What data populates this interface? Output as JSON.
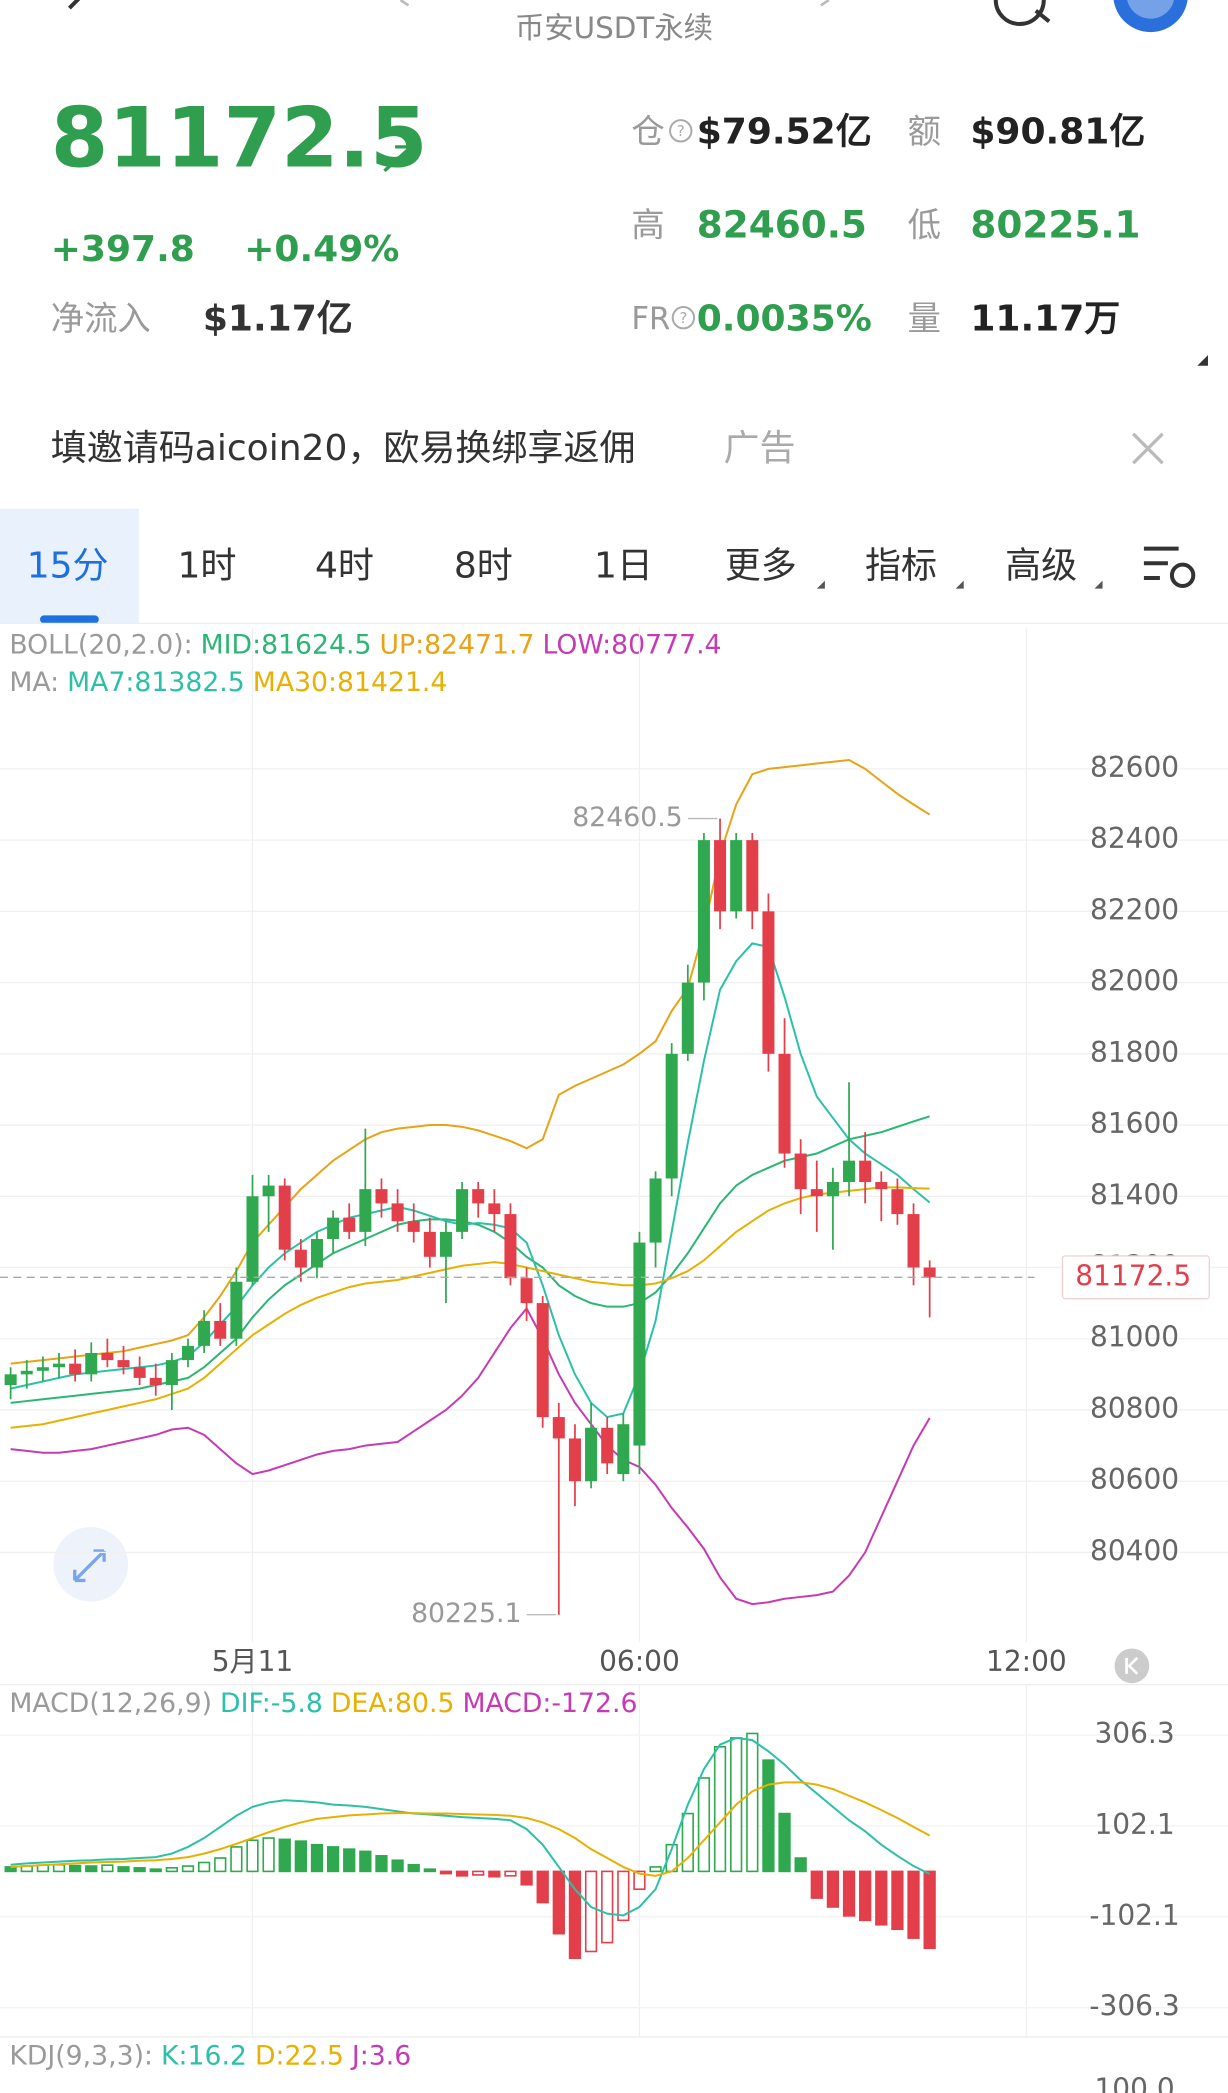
{
  "header": {
    "title": "币安USDT永续"
  },
  "quote": {
    "price": "81172.5",
    "change": "+397.8",
    "change_pct": "+0.49%",
    "net_inflow_label": "净流入",
    "net_inflow": "$1.17亿"
  },
  "stats": [
    {
      "label": "仓",
      "value": "$79.52亿"
    },
    {
      "label": "额",
      "value": "$90.81亿"
    },
    {
      "label": "高",
      "value": "82460.5"
    },
    {
      "label": "低",
      "value": "80225.1"
    },
    {
      "label": "FR",
      "value": "0.0035%"
    },
    {
      "label": "量",
      "value": "11.17万"
    }
  ],
  "ad": {
    "text": "填邀请码aicoin20，欧易换绑享返佣",
    "tag": "广告"
  },
  "tabs": [
    "15分",
    "1时",
    "4时",
    "8时",
    "1日",
    "更多",
    "指标",
    "高级"
  ],
  "chart_data": [
    {
      "type": "candlestick",
      "legend": [
        [
          {
            "text": "BOLL(20,2.0):",
            "color": "#9a9a9a"
          },
          {
            "text": "MID:81624.5",
            "color": "#2bb673"
          },
          {
            "text": "UP:82471.7",
            "color": "#e8a317"
          },
          {
            "text": "LOW:80777.4",
            "color": "#c63bb3"
          }
        ],
        [
          {
            "text": "MA:",
            "color": "#9a9a9a"
          },
          {
            "text": "MA7:81382.5",
            "color": "#2cc0a8"
          },
          {
            "text": "MA30:81421.4",
            "color": "#e8b000"
          }
        ]
      ],
      "up_color": "#2fa84f",
      "down_color": "#e23f4b",
      "open": [
        80870,
        80900,
        80910,
        80920,
        80930,
        80900,
        80960,
        80940,
        80920,
        80890,
        80870,
        80940,
        80980,
        81050,
        81000,
        81160,
        81400,
        81430,
        81250,
        81200,
        81280,
        81340,
        81300,
        81420,
        81380,
        81330,
        81300,
        81230,
        81300,
        81420,
        81380,
        81350,
        81170,
        81100,
        80780,
        80720,
        80600,
        80750,
        80620,
        80700,
        81270,
        81450,
        81800,
        82000,
        82400,
        82200,
        82400,
        82200,
        81800,
        81520,
        81420,
        81400,
        81440,
        81500,
        81440,
        81420,
        81350,
        81200
      ],
      "high": [
        80920,
        80940,
        80950,
        80960,
        80970,
        80990,
        81000,
        80980,
        80950,
        80930,
        80960,
        81000,
        81080,
        81100,
        81200,
        81460,
        81460,
        81450,
        81280,
        81300,
        81360,
        81380,
        81590,
        81450,
        81420,
        81380,
        81340,
        81330,
        81440,
        81440,
        81420,
        81380,
        81200,
        81120,
        80820,
        80760,
        80820,
        80780,
        80790,
        81300,
        81470,
        81830,
        82050,
        82420,
        82460.5,
        82420,
        82420,
        82250,
        81900,
        81560,
        81500,
        81480,
        81720,
        81580,
        81470,
        81450,
        81380,
        81220
      ],
      "low": [
        80830,
        80860,
        80880,
        80890,
        80880,
        80880,
        80920,
        80900,
        80870,
        80840,
        80800,
        80920,
        80960,
        80980,
        80980,
        81150,
        81300,
        81220,
        81160,
        81170,
        81240,
        81280,
        81260,
        81340,
        81300,
        81270,
        81200,
        81100,
        81280,
        81340,
        81300,
        81150,
        81050,
        80750,
        80225.1,
        80530,
        80580,
        80620,
        80600,
        80620,
        81200,
        81400,
        81780,
        81950,
        82150,
        82180,
        82150,
        81750,
        81480,
        81350,
        81300,
        81250,
        81400,
        81380,
        81330,
        81320,
        81150,
        81060
      ],
      "close": [
        80900,
        80910,
        80920,
        80930,
        80900,
        80960,
        80940,
        80920,
        80890,
        80870,
        80940,
        80980,
        81050,
        81000,
        81160,
        81400,
        81430,
        81250,
        81200,
        81280,
        81340,
        81300,
        81420,
        81380,
        81330,
        81300,
        81230,
        81300,
        81420,
        81380,
        81350,
        81170,
        81100,
        80780,
        80720,
        80600,
        80750,
        80650,
        80760,
        81270,
        81450,
        81800,
        82000,
        82400,
        82200,
        82400,
        82200,
        81800,
        81520,
        81420,
        81400,
        81440,
        81500,
        81440,
        81420,
        81350,
        81200,
        81172.5
      ],
      "lines": [
        {
          "color": "#e8a317",
          "values": [
            80930,
            80935,
            80940,
            80945,
            80950,
            80955,
            80960,
            80965,
            80975,
            80985,
            80995,
            81010,
            81060,
            81120,
            81190,
            81270,
            81320,
            81370,
            81420,
            81460,
            81500,
            81530,
            81560,
            81580,
            81590,
            81595,
            81600,
            81600,
            81595,
            81585,
            81570,
            81555,
            81535,
            81560,
            81685,
            81710,
            81730,
            81750,
            81770,
            81800,
            81835,
            81920,
            81985,
            82150,
            82360,
            82500,
            82585,
            82600,
            82605,
            82610,
            82615,
            82620,
            82625,
            82600,
            82565,
            82530,
            82500,
            82471.7
          ]
        },
        {
          "color": "#2bb673",
          "values": [
            80820,
            80825,
            80830,
            80835,
            80840,
            80845,
            80850,
            80855,
            80860,
            80870,
            80880,
            80890,
            80920,
            80960,
            81000,
            81060,
            81110,
            81150,
            81180,
            81210,
            81240,
            81260,
            81280,
            81300,
            81320,
            81330,
            81335,
            81335,
            81330,
            81320,
            81300,
            81270,
            81230,
            81200,
            81150,
            81120,
            81100,
            81090,
            81090,
            81100,
            81130,
            81180,
            81240,
            81310,
            81380,
            81430,
            81460,
            81480,
            81500,
            81510,
            81520,
            81540,
            81560,
            81570,
            81580,
            81595,
            81610,
            81624.5
          ]
        },
        {
          "color": "#c63bb3",
          "values": [
            80690,
            80685,
            80680,
            80680,
            80685,
            80690,
            80700,
            80710,
            80720,
            80730,
            80745,
            80750,
            80730,
            80690,
            80650,
            80620,
            80630,
            80645,
            80660,
            80675,
            80685,
            80690,
            80700,
            80705,
            80710,
            80740,
            80770,
            80800,
            80840,
            80890,
            80960,
            81030,
            81085,
            81000,
            80900,
            80820,
            80760,
            80700,
            80660,
            80640,
            80590,
            80525,
            80470,
            80410,
            80330,
            80270,
            80255,
            80260,
            80270,
            80275,
            80280,
            80290,
            80335,
            80400,
            80500,
            80600,
            80700,
            80777.4
          ]
        },
        {
          "color": "#2cc0a8",
          "values": [
            80860,
            80870,
            80880,
            80890,
            80900,
            80905,
            80910,
            80915,
            80920,
            80925,
            80935,
            80950,
            80990,
            81040,
            81090,
            81150,
            81200,
            81240,
            81270,
            81300,
            81320,
            81340,
            81350,
            81360,
            81370,
            81360,
            81345,
            81330,
            81320,
            81325,
            81320,
            81310,
            81270,
            81150,
            81010,
            80900,
            80820,
            80780,
            80790,
            80900,
            81050,
            81300,
            81550,
            81780,
            81980,
            82060,
            82110,
            82100,
            81960,
            81800,
            81680,
            81620,
            81560,
            81520,
            81490,
            81460,
            81420,
            81382.5
          ]
        },
        {
          "color": "#e8b000",
          "values": [
            80750,
            80755,
            80760,
            80770,
            80780,
            80790,
            80800,
            80810,
            80820,
            80830,
            80845,
            80860,
            80890,
            80930,
            80970,
            81010,
            81040,
            81070,
            81095,
            81115,
            81130,
            81145,
            81155,
            81160,
            81165,
            81175,
            81185,
            81195,
            81205,
            81210,
            81215,
            81210,
            81200,
            81190,
            81180,
            81170,
            81160,
            81155,
            81150,
            81150,
            81155,
            81170,
            81190,
            81220,
            81260,
            81300,
            81330,
            81360,
            81380,
            81395,
            81405,
            81410,
            81415,
            81420,
            81425,
            81425,
            81423,
            81421.4
          ]
        }
      ],
      "high_label": 82460.5,
      "low_label": 80225.1,
      "last_price": 81172.5,
      "ylim": [
        80149,
        82735
      ],
      "yticks": [
        80400,
        80600,
        80800,
        81000,
        81200,
        81400,
        81600,
        81800,
        82000,
        82200,
        82400,
        82600
      ],
      "xlim": [
        -0.66,
        63.5
      ],
      "xticks": [
        {
          "value": 15,
          "label": "5月11"
        },
        {
          "value": 39,
          "label": "06:00"
        },
        {
          "value": 63,
          "label": "12:00"
        }
      ]
    },
    {
      "type": "macd",
      "legend": [
        {
          "text": "MACD(12,26,9)",
          "color": "#9a9a9a"
        },
        {
          "text": "DIF:-5.8",
          "color": "#2cc0a8"
        },
        {
          "text": "DEA:80.5",
          "color": "#e8b000"
        },
        {
          "text": "MACD:-172.6",
          "color": "#c63bb3"
        }
      ],
      "up_color": "#2fa84f",
      "down_color": "#e23f4b",
      "values": [
        10,
        12,
        14,
        15,
        13,
        12,
        14,
        10,
        8,
        5,
        8,
        12,
        20,
        30,
        55,
        70,
        75,
        72,
        68,
        60,
        55,
        50,
        45,
        35,
        25,
        15,
        5,
        -5,
        -10,
        -8,
        -12,
        -10,
        -30,
        -70,
        -140,
        -195,
        -180,
        -160,
        -110,
        -40,
        10,
        60,
        130,
        210,
        280,
        300,
        310,
        250,
        130,
        30,
        -60,
        -80,
        -100,
        -110,
        -120,
        -130,
        -150,
        -172.6
      ],
      "lines": [
        {
          "color": "#2cc0a8",
          "values": [
            15,
            18,
            20,
            22,
            24,
            25,
            27,
            28,
            30,
            32,
            40,
            55,
            75,
            100,
            125,
            145,
            155,
            160,
            158,
            155,
            150,
            148,
            145,
            140,
            135,
            130,
            128,
            125,
            122,
            120,
            118,
            115,
            95,
            60,
            10,
            -40,
            -80,
            -95,
            -99,
            -80,
            -40,
            50,
            150,
            230,
            285,
            300,
            295,
            270,
            240,
            205,
            175,
            145,
            115,
            90,
            60,
            35,
            12,
            -5.8
          ]
        },
        {
          "color": "#e8b000",
          "values": [
            10,
            12,
            14,
            16,
            18,
            20,
            21,
            22,
            24,
            25,
            28,
            32,
            40,
            50,
            62,
            75,
            88,
            100,
            110,
            118,
            122,
            126,
            128,
            130,
            131,
            131,
            130,
            130,
            129,
            128,
            127,
            125,
            120,
            110,
            95,
            75,
            50,
            30,
            10,
            -5,
            -10,
            0,
            30,
            70,
            110,
            150,
            180,
            195,
            200,
            200,
            195,
            185,
            170,
            155,
            138,
            120,
            100,
            80.5
          ]
        }
      ],
      "ylim": [
        -372,
        420
      ],
      "yticks": [
        306.3,
        102.1,
        -102.1,
        -306.3
      ]
    }
  ],
  "kdj": {
    "legend": [
      {
        "text": "KDJ(9,3,3):",
        "color": "#9a9a9a"
      },
      {
        "text": "K:16.2",
        "color": "#2cc0a8"
      },
      {
        "text": "D:22.5",
        "color": "#e8b000"
      },
      {
        "text": "J:3.6",
        "color": "#c63bb3"
      }
    ],
    "top_label": "100.0"
  }
}
